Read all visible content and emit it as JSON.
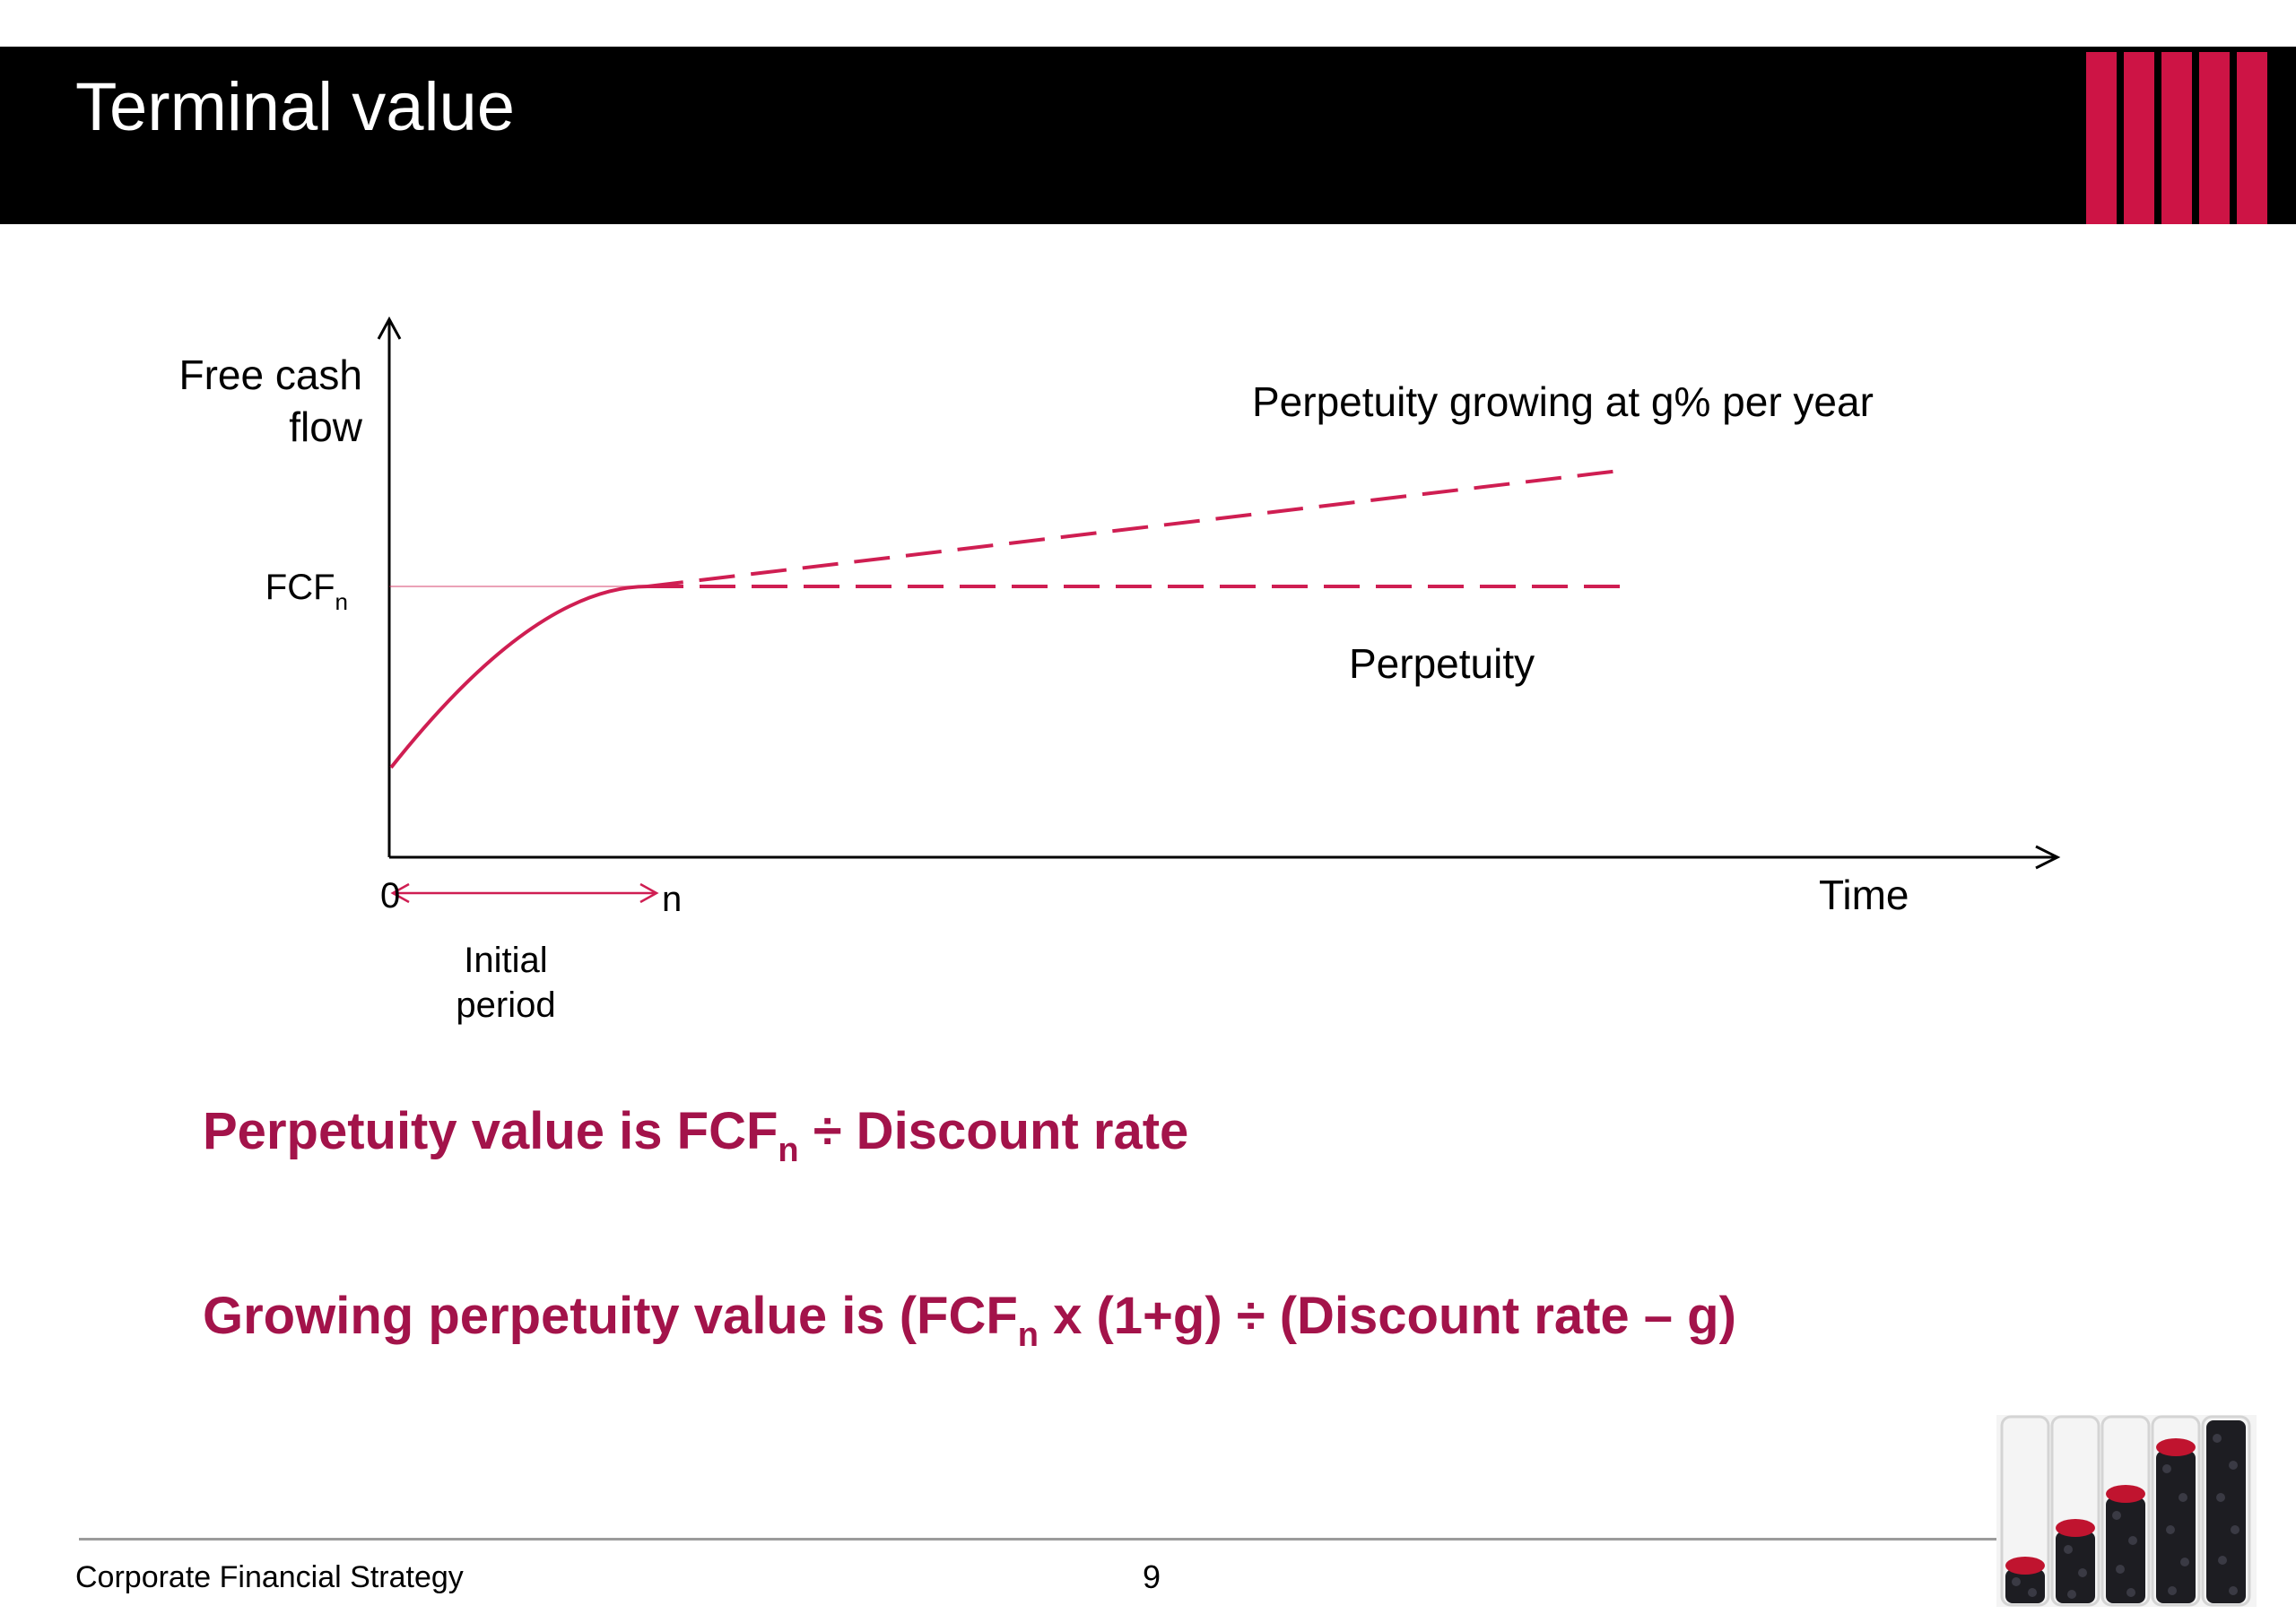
{
  "slide": {
    "title": "Terminal value",
    "page_number": "9",
    "footer_text": "Corporate Financial Strategy"
  },
  "colors": {
    "header_bg": "#000000",
    "accent_red": "#cd1445",
    "curve_color": "#cf1e52",
    "formula_color": "#a3134a"
  },
  "diagram": {
    "y_axis_label_line1": "Free cash",
    "y_axis_label_line2": "flow",
    "y_tick_label": "FCF",
    "y_tick_subscript": "n",
    "x_axis_label": "Time",
    "x_origin_label": "0",
    "x_n_label": "n",
    "period_label_line1": "Initial",
    "period_label_line2": "period",
    "growing_label": "Perpetuity growing at g% per year",
    "flat_label": "Perpetuity"
  },
  "formulas": {
    "perpetuity_prefix": "Perpetuity value is FCF",
    "perpetuity_sub": "n",
    "perpetuity_suffix": " ÷ Discount rate",
    "growing_prefix": "Growing perpetuity value is (FCF",
    "growing_sub": "n",
    "growing_suffix": " x (1+g) ÷ (Discount rate – g)"
  }
}
